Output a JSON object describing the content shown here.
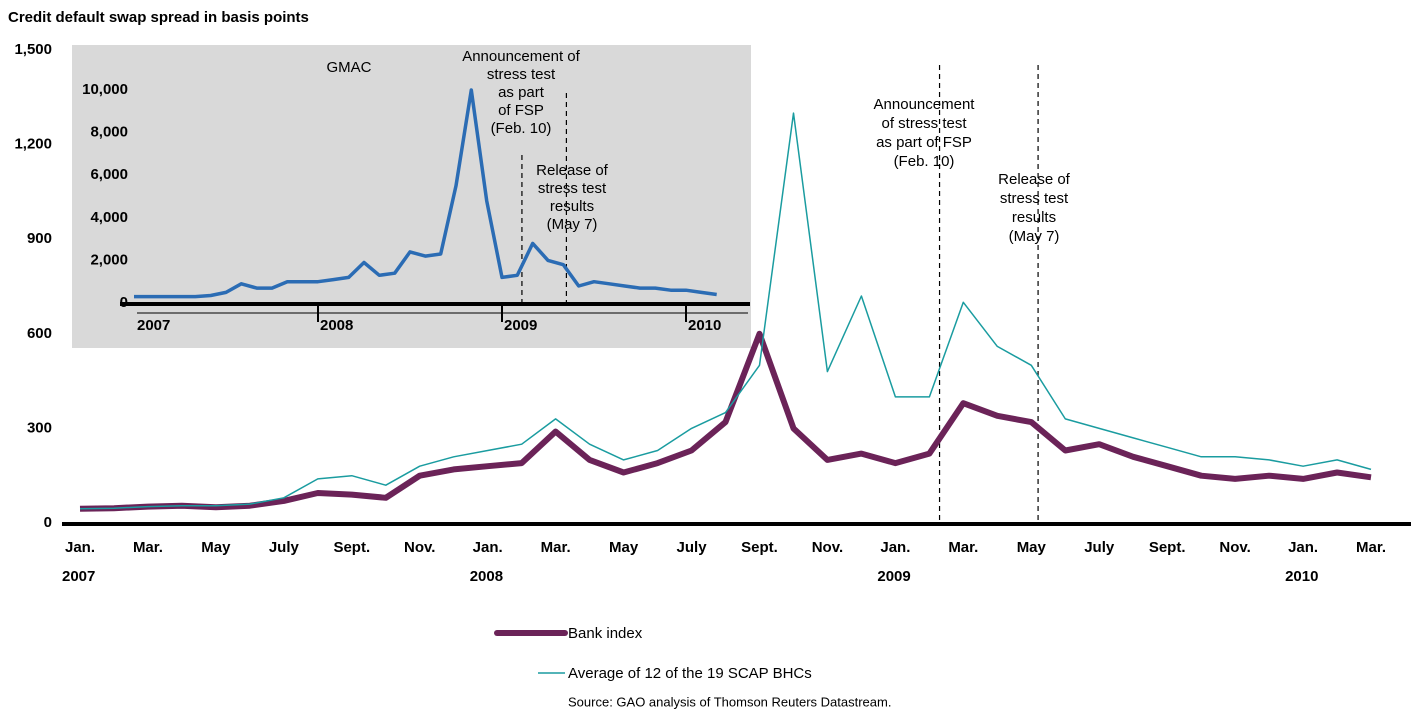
{
  "chart_data": [
    {
      "type": "line",
      "title": "Credit default swap spread in basis points",
      "x": [
        "2007-01",
        "2007-02",
        "2007-03",
        "2007-04",
        "2007-05",
        "2007-06",
        "2007-07",
        "2007-08",
        "2007-09",
        "2007-10",
        "2007-11",
        "2007-12",
        "2008-01",
        "2008-02",
        "2008-03",
        "2008-04",
        "2008-05",
        "2008-06",
        "2008-07",
        "2008-08",
        "2008-09",
        "2008-10",
        "2008-11",
        "2008-12",
        "2009-01",
        "2009-02",
        "2009-03",
        "2009-04",
        "2009-05",
        "2009-06",
        "2009-07",
        "2009-08",
        "2009-09",
        "2009-10",
        "2009-11",
        "2009-12",
        "2010-01",
        "2010-02",
        "2010-03"
      ],
      "series": [
        {
          "name": "Bank index",
          "color": "#6b2358",
          "values": [
            45,
            47,
            52,
            55,
            50,
            55,
            70,
            95,
            90,
            80,
            150,
            170,
            180,
            190,
            290,
            200,
            160,
            190,
            230,
            320,
            600,
            300,
            200,
            220,
            190,
            220,
            380,
            340,
            320,
            230,
            250,
            210,
            180,
            150,
            140,
            150,
            140,
            160,
            145
          ]
        },
        {
          "name": "Average of 12 of the 19 SCAP BHCs",
          "color": "#1a9ca0",
          "values": [
            45,
            47,
            52,
            55,
            55,
            60,
            80,
            140,
            150,
            120,
            180,
            210,
            230,
            250,
            330,
            250,
            200,
            230,
            300,
            350,
            500,
            1300,
            480,
            720,
            400,
            400,
            700,
            560,
            500,
            330,
            300,
            270,
            240,
            210,
            210,
            200,
            180,
            200,
            170
          ]
        }
      ],
      "xlim": [
        "2007-01",
        "2010-04"
      ],
      "ylim": [
        0,
        1500
      ],
      "yticks": [
        0,
        300,
        600,
        900,
        {
          "value": 1200,
          "label": "1,200"
        },
        {
          "value": 1500,
          "label": "1,500"
        }
      ],
      "xticks": [
        {
          "value": "2007-01",
          "label": "Jan."
        },
        {
          "value": "2007-03",
          "label": "Mar."
        },
        {
          "value": "2007-05",
          "label": "May"
        },
        {
          "value": "2007-07",
          "label": "July"
        },
        {
          "value": "2007-09",
          "label": "Sept."
        },
        {
          "value": "2007-11",
          "label": "Nov."
        },
        {
          "value": "2008-01",
          "label": "Jan."
        },
        {
          "value": "2008-03",
          "label": "Mar."
        },
        {
          "value": "2008-05",
          "label": "May"
        },
        {
          "value": "2008-07",
          "label": "July"
        },
        {
          "value": "2008-09",
          "label": "Sept."
        },
        {
          "value": "2008-11",
          "label": "Nov."
        },
        {
          "value": "2009-01",
          "label": "Jan."
        },
        {
          "value": "2009-03",
          "label": "Mar."
        },
        {
          "value": "2009-05",
          "label": "May"
        },
        {
          "value": "2009-07",
          "label": "July"
        },
        {
          "value": "2009-09",
          "label": "Sept."
        },
        {
          "value": "2009-11",
          "label": "Nov."
        },
        {
          "value": "2010-01",
          "label": "Jan."
        },
        {
          "value": "2010-03",
          "label": "Mar."
        }
      ],
      "year_ticks": [
        {
          "value": "2007-01",
          "label": "2007"
        },
        {
          "value": "2008-01",
          "label": "2008"
        },
        {
          "value": "2009-01",
          "label": "2009"
        },
        {
          "value": "2010-01",
          "label": "2010"
        }
      ],
      "annotations": [
        {
          "x": "2009-02-10",
          "lines": [
            "Announcement",
            "of stress test",
            "as part of FSP",
            "(Feb. 10)"
          ]
        },
        {
          "x": "2009-05-07",
          "lines": [
            "Release of",
            "stress test",
            "results",
            "(May 7)"
          ]
        }
      ],
      "source": "Source: GAO analysis of Thomson Reuters Datastream."
    },
    {
      "type": "line",
      "title": "GMAC",
      "x": [
        "2007-01",
        "2007-02",
        "2007-03",
        "2007-04",
        "2007-05",
        "2007-06",
        "2007-07",
        "2007-08",
        "2007-09",
        "2007-10",
        "2007-11",
        "2007-12",
        "2008-01",
        "2008-02",
        "2008-03",
        "2008-04",
        "2008-05",
        "2008-06",
        "2008-07",
        "2008-08",
        "2008-09",
        "2008-10",
        "2008-11",
        "2008-12",
        "2009-01",
        "2009-02",
        "2009-03",
        "2009-04",
        "2009-05",
        "2009-06",
        "2009-07",
        "2009-08",
        "2009-09",
        "2009-10",
        "2009-11",
        "2009-12",
        "2010-01",
        "2010-02",
        "2010-03"
      ],
      "series": [
        {
          "name": "GMAC",
          "color": "#2b6cb4",
          "values": [
            300,
            300,
            300,
            300,
            300,
            350,
            500,
            900,
            700,
            700,
            1000,
            1000,
            1000,
            1100,
            1200,
            1900,
            1300,
            1400,
            2400,
            2200,
            2300,
            5500,
            10000,
            4800,
            1200,
            1300,
            2800,
            2000,
            1800,
            800,
            1000,
            900,
            800,
            700,
            700,
            600,
            600,
            500,
            400
          ]
        }
      ],
      "xlim": [
        "2007-01",
        "2010-04"
      ],
      "ylim": [
        0,
        10000
      ],
      "yticks": [
        0,
        {
          "value": 2000,
          "label": "2,000"
        },
        {
          "value": 4000,
          "label": "4,000"
        },
        {
          "value": 6000,
          "label": "6,000"
        },
        {
          "value": 8000,
          "label": "8,000"
        },
        {
          "value": 10000,
          "label": "10,000"
        }
      ],
      "xticks": [
        {
          "value": "2007-01",
          "label": "2007"
        },
        {
          "value": "2008-01",
          "label": "2008"
        },
        {
          "value": "2009-01",
          "label": "2009"
        },
        {
          "value": "2010-01",
          "label": "2010"
        }
      ],
      "annotations": [
        {
          "x": "2009-02-10",
          "lines": [
            "Announcement of",
            "stress test",
            "as part",
            "of FSP",
            "(Feb. 10)"
          ]
        },
        {
          "x": "2009-05-07",
          "lines": [
            "Release of",
            "stress test",
            "results",
            "(May 7)"
          ]
        }
      ]
    }
  ]
}
